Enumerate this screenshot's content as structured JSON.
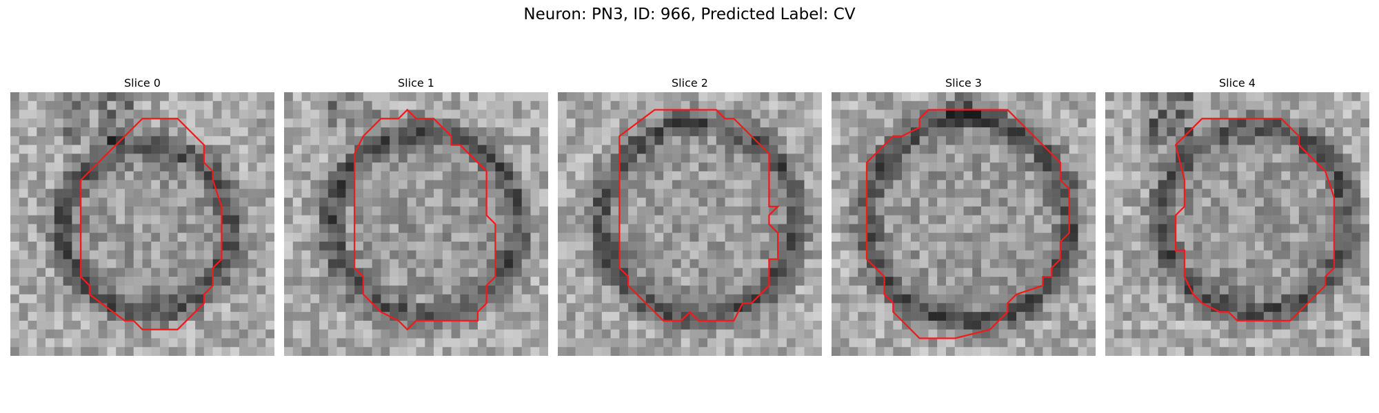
{
  "figure": {
    "title": "Neuron: PN3, ID: 966, Predicted Label: CV",
    "outline_color": "#ee1c1c",
    "colormap": "gray",
    "grid_size": 30
  },
  "panels": [
    {
      "label": "Slice 0"
    },
    {
      "label": "Slice 1"
    },
    {
      "label": "Slice 2"
    },
    {
      "label": "Slice 3"
    },
    {
      "label": "Slice 4"
    }
  ]
}
